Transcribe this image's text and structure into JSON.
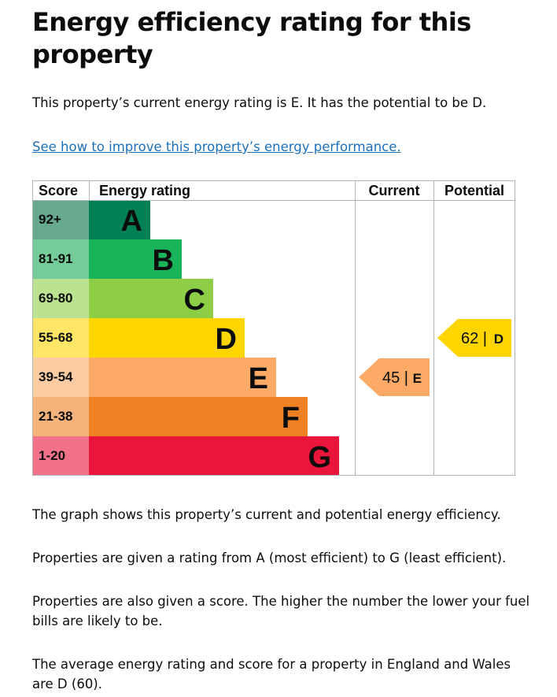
{
  "page": {
    "heading": "Energy efficiency rating for this property",
    "current_rating_text": "This property’s current energy rating is E. It has the potential to be D.",
    "improve_link": "See how to improve this property’s energy performance.",
    "graph_text": "The graph shows this property’s current and potential energy efficiency.",
    "rating_range_text": "Properties are given a rating from A (most efficient) to G (least efficient).",
    "score_text": "Properties are also given a score. The higher the number the lower your fuel bills are likely to be.",
    "average_text": "The average energy rating and score for a property in England and Wales are D (60)."
  },
  "chart_data": {
    "type": "table",
    "title": "Energy efficiency rating",
    "columns": [
      "Score",
      "Energy rating",
      "Current",
      "Potential"
    ],
    "bands": [
      {
        "score": "92+",
        "letter": "A",
        "color": "#008054",
        "score_color": "#66a98f"
      },
      {
        "score": "81-91",
        "letter": "B",
        "color": "#19b459",
        "score_color": "#75cc9b"
      },
      {
        "score": "69-80",
        "letter": "C",
        "color": "#8dce46",
        "score_color": "#bbe290"
      },
      {
        "score": "55-68",
        "letter": "D",
        "color": "#ffd500",
        "score_color": "#ffe666"
      },
      {
        "score": "39-54",
        "letter": "E",
        "color": "#fcaa65",
        "score_color": "#fdcca3"
      },
      {
        "score": "21-38",
        "letter": "F",
        "color": "#ef8023",
        "score_color": "#f5b37b"
      },
      {
        "score": "1-20",
        "letter": "G",
        "color": "#e9153b",
        "score_color": "#f27389"
      }
    ],
    "current": {
      "score": 45,
      "letter": "E",
      "label": "45 |",
      "color": "#fcaa65"
    },
    "potential": {
      "score": 62,
      "letter": "D",
      "label": "62 |",
      "color": "#ffd500"
    }
  }
}
